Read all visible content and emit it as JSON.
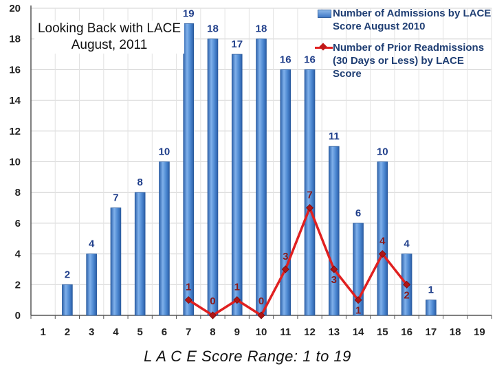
{
  "chart_data": {
    "type": "bar",
    "title": "Looking Back with LACE August, 2011",
    "xlabel": "L A C E   Score Range: 1 to 19",
    "ylabel": "",
    "categories": [
      "1",
      "2",
      "3",
      "4",
      "5",
      "6",
      "7",
      "8",
      "9",
      "10",
      "11",
      "12",
      "13",
      "14",
      "15",
      "16",
      "17",
      "18",
      "19"
    ],
    "ylim": [
      0,
      20
    ],
    "yticks": [
      0,
      2,
      4,
      6,
      8,
      10,
      12,
      14,
      16,
      18,
      20
    ],
    "grid": true,
    "legend_position": "top-right",
    "series": [
      {
        "name": "Number of Admissions by LACE Score August 2010",
        "type": "bar",
        "color": "#4a86d0",
        "label_color": "#1f3e8a",
        "values": [
          null,
          2,
          4,
          7,
          8,
          10,
          19,
          18,
          17,
          18,
          16,
          16,
          11,
          6,
          10,
          4,
          1,
          null,
          null
        ]
      },
      {
        "name": "Number of Prior Readmissions (30 Days or Less) by LACE Score",
        "type": "line",
        "color": "#e02020",
        "marker_color": "#b01515",
        "label_color": "#8a1a1a",
        "values": [
          null,
          null,
          null,
          null,
          null,
          null,
          1,
          0,
          1,
          0,
          3,
          7,
          3,
          1,
          4,
          2,
          null,
          null,
          null
        ]
      }
    ]
  }
}
